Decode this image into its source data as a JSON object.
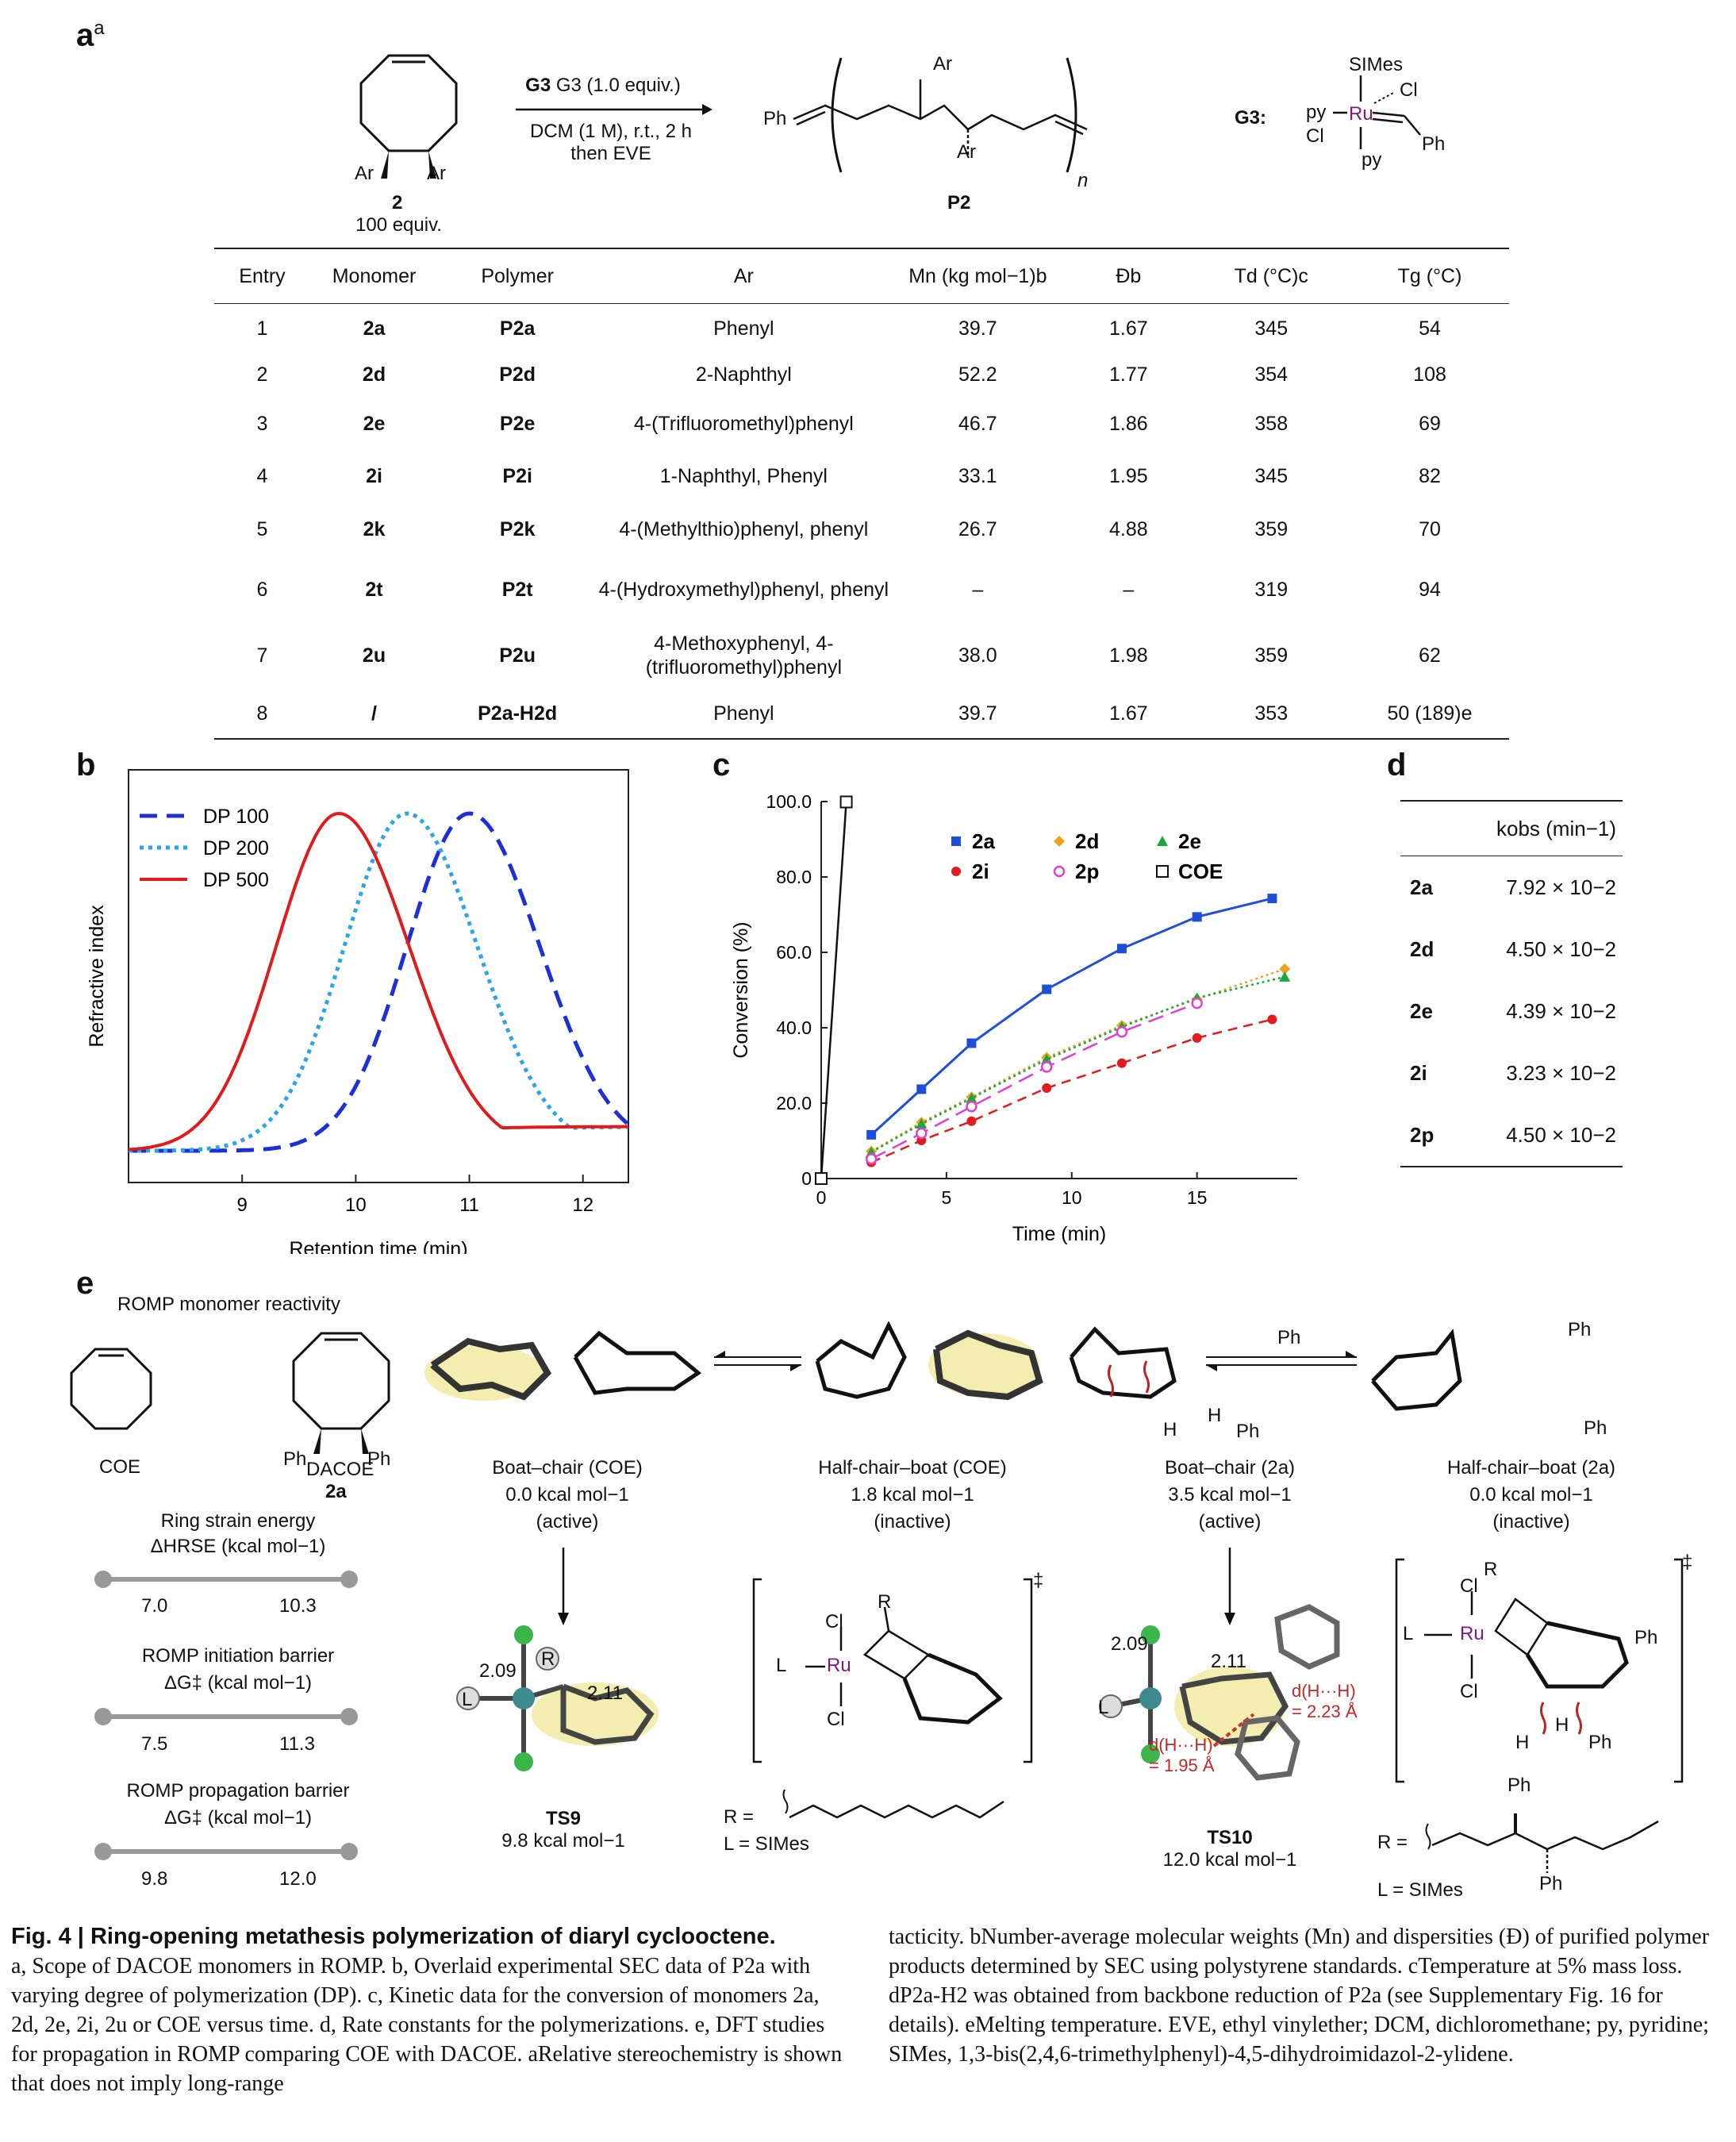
{
  "panel_a": {
    "label": "a",
    "label_sup": "a",
    "monomer_name": "2",
    "monomer_equiv": "100 equiv.",
    "ar1": "Ar",
    "ar2": "Ar",
    "cond_line1": "G3 (1.0 equiv.)",
    "cond_line2": "DCM (1 M), r.t., 2 h",
    "cond_line3": "then EVE",
    "polymer_name": "P2",
    "ph": "Ph",
    "n": "n",
    "g3_label": "G3:",
    "g3_simes": "SIMes",
    "g3_ru": "Ru",
    "g3_py1": "py",
    "g3_py2": "py",
    "g3_cl1": "Cl",
    "g3_cl2": "Cl",
    "g3_ph": "Ph",
    "headers": [
      "Entry",
      "Monomer",
      "Polymer",
      "Ar",
      "Mn (kg mol−1)b",
      "Đb",
      "Td (°C)c",
      "Tg (°C)"
    ],
    "rows": [
      {
        "entry": "1",
        "monomer": "2a",
        "polymer": "P2a",
        "ar": "Phenyl",
        "mn": "39.7",
        "d": "1.67",
        "td": "345",
        "tg": "54"
      },
      {
        "entry": "2",
        "monomer": "2d",
        "polymer": "P2d",
        "ar": "2-Naphthyl",
        "mn": "52.2",
        "d": "1.77",
        "td": "354",
        "tg": "108"
      },
      {
        "entry": "3",
        "monomer": "2e",
        "polymer": "P2e",
        "ar": "4-(Trifluoromethyl)phenyl",
        "mn": "46.7",
        "d": "1.86",
        "td": "358",
        "tg": "69"
      },
      {
        "entry": "4",
        "monomer": "2i",
        "polymer": "P2i",
        "ar": "1-Naphthyl, Phenyl",
        "mn": "33.1",
        "d": "1.95",
        "td": "345",
        "tg": "82"
      },
      {
        "entry": "5",
        "monomer": "2k",
        "polymer": "P2k",
        "ar": "4-(Methylthio)phenyl, phenyl",
        "mn": "26.7",
        "d": "4.88",
        "td": "359",
        "tg": "70"
      },
      {
        "entry": "6",
        "monomer": "2t",
        "polymer": "P2t",
        "ar": "4-(Hydroxymethyl)phenyl, phenyl",
        "mn": "–",
        "d": "–",
        "td": "319",
        "tg": "94"
      },
      {
        "entry": "7",
        "monomer": "2u",
        "polymer": "P2u",
        "ar": "4-Methoxyphenyl, 4-(trifluoromethyl)phenyl",
        "mn": "38.0",
        "d": "1.98",
        "td": "359",
        "tg": "62"
      },
      {
        "entry": "8",
        "monomer": "/",
        "polymer": "P2a-H2d",
        "ar": "Phenyl",
        "mn": "39.7",
        "d": "1.67",
        "td": "353",
        "tg": "50 (189)e"
      }
    ]
  },
  "panel_b": {
    "label": "b",
    "chart_data": {
      "type": "line",
      "xlabel": "Retention time (min)",
      "ylabel": "Refractive index",
      "xlim": [
        8,
        12.4
      ],
      "xticks": [
        "9",
        "10",
        "11",
        "12"
      ],
      "legend": [
        "DP 100",
        "DP 200",
        "DP 500"
      ],
      "series": [
        {
          "name": "DP 100",
          "peak_x": 11.0,
          "peak_height": 1.0,
          "color": "#1f2fd6"
        },
        {
          "name": "DP 200",
          "peak_x": 10.45,
          "peak_height": 1.0,
          "color": "#2aa6e8"
        },
        {
          "name": "DP 500",
          "peak_x": 9.85,
          "peak_height": 1.0,
          "color": "#e01b1b"
        }
      ]
    }
  },
  "panel_c": {
    "label": "c",
    "chart_data": {
      "type": "scatter",
      "xlabel": "Time (min)",
      "ylabel": "Conversion (%)",
      "xlim": [
        0,
        19
      ],
      "ylim": [
        0,
        100
      ],
      "xticks": [
        "0",
        "5",
        "10",
        "15"
      ],
      "yticks": [
        "0",
        "20.0",
        "40.0",
        "60.0",
        "80.0",
        "100.0"
      ],
      "series": [
        {
          "name": "2a",
          "color": "#1f4fd8",
          "marker": "square",
          "x": [
            2,
            4,
            6,
            9,
            12,
            15,
            18
          ],
          "y": [
            11.6,
            23.7,
            35.9,
            50.2,
            61.0,
            69.4,
            74.3
          ]
        },
        {
          "name": "2d",
          "color": "#f0a020",
          "marker": "diamond",
          "x": [
            2,
            4,
            6,
            9,
            12,
            15,
            18.5
          ],
          "y": [
            7.2,
            14.9,
            21.6,
            32.1,
            40.6,
            47.6,
            55.6
          ]
        },
        {
          "name": "2e",
          "color": "#1aa83c",
          "marker": "triangle",
          "x": [
            2,
            4,
            6,
            9,
            12,
            15,
            18.5
          ],
          "y": [
            7.0,
            14.5,
            21.3,
            31.6,
            40.2,
            47.9,
            53.5
          ]
        },
        {
          "name": "2i",
          "color": "#e21c1c",
          "marker": "circle",
          "x": [
            2,
            4,
            6,
            9,
            12,
            15,
            18
          ],
          "y": [
            4.3,
            10.1,
            15.2,
            24.0,
            30.6,
            37.3,
            42.2
          ]
        },
        {
          "name": "2p",
          "color": "#e040d0",
          "marker": "open-circle",
          "x": [
            2,
            4,
            6,
            9,
            12,
            15
          ],
          "y": [
            5.2,
            12.0,
            19.1,
            29.6,
            38.9,
            46.5
          ]
        },
        {
          "name": "COE",
          "color": "#111111",
          "marker": "open-square",
          "x": [
            0,
            1
          ],
          "y": [
            0,
            99.9
          ]
        }
      ]
    }
  },
  "panel_d": {
    "label": "d",
    "header": "kobs (min−1)",
    "rows": [
      {
        "name": "2a",
        "val": "7.92 × 10−2"
      },
      {
        "name": "2d",
        "val": "4.50 × 10−2"
      },
      {
        "name": "2e",
        "val": "4.39 × 10−2"
      },
      {
        "name": "2i",
        "val": "3.23 × 10−2"
      },
      {
        "name": "2p",
        "val": "4.50 × 10−2"
      }
    ]
  },
  "panel_e": {
    "label": "e",
    "reactivity_title": "ROMP monomer reactivity",
    "coe": "COE",
    "dacoe": "DACOE",
    "dacoe_id": "2a",
    "ph": "Ph",
    "rse_title": "Ring strain energy",
    "rse_unit": "ΔHRSE  (kcal mol−1)",
    "rse_lo": "7.0",
    "rse_hi": "10.3",
    "init_title": "ROMP initiation barrier",
    "init_unit": "ΔG‡  (kcal mol−1)",
    "init_lo": "7.5",
    "init_hi": "11.3",
    "prop_title": "ROMP propagation barrier",
    "prop_unit": "ΔG‡ (kcal mol−1)",
    "prop_lo": "9.8",
    "prop_hi": "12.0",
    "bc_coe": [
      "Boat–chair (COE)",
      "0.0 kcal mol−1",
      "(active)"
    ],
    "hcb_coe": [
      "Half-chair–boat (COE)",
      "1.8 kcal mol−1",
      "(inactive)"
    ],
    "bc_2a": [
      "Boat–chair (2a)",
      "3.5 kcal mol−1",
      "(active)"
    ],
    "hcb_2a": [
      "Half-chair–boat (2a)",
      "0.0 kcal mol−1",
      "(inactive)"
    ],
    "ts9": "TS9",
    "ts9_e": "9.8 kcal mol−1",
    "ts10": "TS10",
    "ts10_e": "12.0 kcal mol−1",
    "d209": "2.09",
    "d211": "2.11",
    "hh1": "d(H···H)",
    "hh1v": "= 2.23 Å",
    "hh2": "d(H···H)",
    "hh2v": "= 1.95 Å",
    "r_eq": "R =",
    "l_eq": "L = SIMes",
    "ru": "Ru",
    "cl": "Cl",
    "l": "L",
    "r": "R",
    "h": "H",
    "dagger": "‡"
  },
  "caption": {
    "title": "Fig. 4 | Ring-opening metathesis polymerization of diaryl cyclooctene.",
    "left": "a, Scope of DACOE monomers in ROMP. b, Overlaid experimental SEC data of P2a with varying degree of polymerization (DP). c, Kinetic data for the conversion of monomers 2a, 2d, 2e, 2i, 2u or COE versus time. d, Rate constants for the polymerizations. e, DFT studies for propagation in ROMP comparing COE with DACOE. aRelative stereochemistry is shown that does not imply long-range",
    "right": "tacticity. bNumber-average molecular weights (Mn) and dispersities (Đ) of purified polymer products determined by SEC using polystyrene standards. cTemperature at 5% mass loss. dP2a-H2 was obtained from backbone reduction of P2a (see Supplementary Fig. 16 for details). eMelting temperature. EVE, ethyl vinylether; DCM, dichloromethane; py, pyridine; SIMes, 1,3-bis(2,4,6-trimethylphenyl)-4,5-dihydroimidazol-2-ylidene."
  }
}
